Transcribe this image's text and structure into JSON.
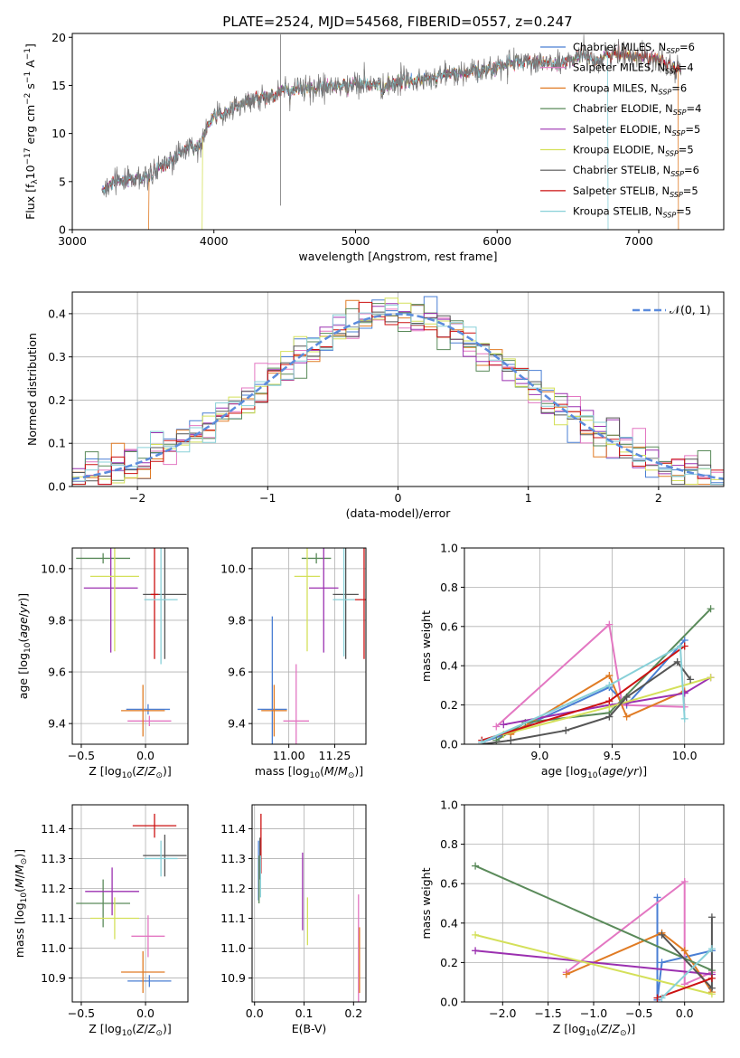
{
  "figure_title": "PLATE=2524, MJD=54568, FIBERID=0557, z=0.247",
  "models": [
    {
      "name": "Chabrier MILES",
      "nssp": "6",
      "color": "#4a7fd4"
    },
    {
      "name": "Salpeter MILES",
      "nssp": "4",
      "color": "#e377c2"
    },
    {
      "name": "Kroupa MILES",
      "nssp": "6",
      "color": "#e07b24"
    },
    {
      "name": "Chabrier ELODIE",
      "nssp": "4",
      "color": "#5a8a5a"
    },
    {
      "name": "Salpeter ELODIE",
      "nssp": "5",
      "color": "#9b30b0"
    },
    {
      "name": "Kroupa ELODIE",
      "nssp": "5",
      "color": "#d4e05a"
    },
    {
      "name": "Chabrier STELIB",
      "nssp": "6",
      "color": "#555555"
    },
    {
      "name": "Salpeter STELIB",
      "nssp": "5",
      "color": "#cc1111"
    },
    {
      "name": "Kroupa STELIB",
      "nssp": "5",
      "color": "#88d0d8"
    }
  ],
  "chart_data": [
    {
      "id": "spectrum",
      "type": "line",
      "xlabel": "wavelength [Angstrom, rest frame]",
      "ylabel": "Flux [f_λ 10^-17 erg cm^-2 s^-1 A^-1]",
      "xlim": [
        3000,
        7600
      ],
      "ylim": [
        0,
        20.4
      ],
      "xticks": [
        3000,
        4000,
        5000,
        6000,
        7000
      ],
      "yticks": [
        0,
        5,
        10,
        15,
        20
      ],
      "grid": false,
      "legend_position": "right",
      "data_x": [
        3210,
        3250,
        3300,
        3400,
        3500,
        3550,
        3600,
        3700,
        3800,
        3900,
        3950,
        4000,
        4100,
        4200,
        4300,
        4400,
        4500,
        4600,
        4700,
        4800,
        4900,
        5000,
        5100,
        5200,
        5300,
        5400,
        5500,
        5600,
        5700,
        5800,
        5900,
        6000,
        6100,
        6200,
        6300,
        6400,
        6500,
        6600,
        6700,
        6800,
        6900,
        7000,
        7100,
        7200,
        7290
      ],
      "data_y": [
        4.3,
        4.6,
        5.0,
        5.3,
        5.2,
        5.8,
        6.3,
        7.2,
        8.3,
        8.6,
        10.5,
        11.8,
        12.4,
        13.2,
        13.6,
        14.0,
        14.3,
        14.7,
        14.6,
        15.0,
        14.9,
        15.2,
        15.1,
        14.8,
        15.3,
        15.6,
        15.5,
        16.0,
        16.2,
        16.2,
        16.5,
        17.0,
        17.3,
        17.6,
        17.4,
        17.2,
        17.5,
        18.0,
        17.6,
        18.2,
        18.3,
        17.9,
        18.0,
        17.4,
        16.5
      ],
      "model_start_x": [
        3210,
        3210,
        3540,
        3210,
        3210,
        3920,
        3210,
        3210,
        3210
      ],
      "model_end_x": [
        7300,
        7300,
        7280,
        7300,
        7300,
        7300,
        7300,
        7300,
        6780
      ]
    },
    {
      "id": "residuals",
      "type": "line",
      "xlabel": "(data-model)/error",
      "ylabel": "Normed distribution",
      "xlim": [
        -2.5,
        2.5
      ],
      "ylim": [
        0,
        0.45
      ],
      "xticks": [
        -2,
        -1,
        0,
        1,
        2
      ],
      "yticks": [
        0.0,
        0.1,
        0.2,
        0.3,
        0.4
      ],
      "grid": true,
      "legend": "𝒩(0, 1)",
      "legend_position": "top-right",
      "bin_width": 0.1
    },
    {
      "id": "age-vs-Z",
      "type": "scatter",
      "xlabel": "Z [log10(Z/Z⊙)]",
      "ylabel": "age [log10(age/yr)]",
      "xlim": [
        -0.57,
        0.33
      ],
      "ylim": [
        9.32,
        10.08
      ],
      "xticks": [
        -0.5,
        0.0
      ],
      "yticks": [
        9.4,
        9.6,
        9.8,
        10.0
      ],
      "grid": true,
      "points": [
        {
          "x": 0.02,
          "y": 9.455,
          "xerr": 0.17,
          "yerr": 0.02
        },
        {
          "x": 0.03,
          "y": 9.41,
          "xerr": 0.17,
          "yerr": 0.02
        },
        {
          "x": -0.02,
          "y": 9.45,
          "xerr": 0.17,
          "yerr": 0.1
        },
        {
          "x": -0.33,
          "y": 10.04,
          "xerr": 0.21,
          "yerr": 0.02
        },
        {
          "x": -0.27,
          "y": 9.925,
          "xerr": 0.21,
          "yerr": 0.25
        },
        {
          "x": -0.24,
          "y": 9.97,
          "xerr": 0.19,
          "yerr": 0.29
        },
        {
          "x": 0.15,
          "y": 9.9,
          "xerr": 0.17,
          "yerr": 0.25
        },
        {
          "x": 0.07,
          "y": 9.9,
          "xerr": 0.03,
          "yerr": 0.25
        },
        {
          "x": 0.12,
          "y": 9.88,
          "xerr": 0.13,
          "yerr": 0.25
        }
      ]
    },
    {
      "id": "age-vs-mass",
      "type": "scatter",
      "xlabel": "mass [log10(M/M⊙)]",
      "ylabel": "",
      "xlim": [
        10.8,
        11.42
      ],
      "ylim": [
        9.32,
        10.08
      ],
      "xticks": [
        11.0,
        11.25
      ],
      "yticks": [
        9.4,
        9.6,
        9.8,
        10.0
      ],
      "grid": true,
      "points": [
        {
          "x": 10.91,
          "y": 9.455,
          "xerr": 0.08,
          "yerr": 0.36
        },
        {
          "x": 11.04,
          "y": 9.41,
          "xerr": 0.07,
          "yerr": 0.22
        },
        {
          "x": 10.92,
          "y": 9.45,
          "xerr": 0.07,
          "yerr": 0.1
        },
        {
          "x": 11.15,
          "y": 10.04,
          "xerr": 0.08,
          "yerr": 0.02
        },
        {
          "x": 11.19,
          "y": 9.925,
          "xerr": 0.08,
          "yerr": 0.25
        },
        {
          "x": 11.1,
          "y": 9.97,
          "xerr": 0.07,
          "yerr": 0.29
        },
        {
          "x": 11.31,
          "y": 9.9,
          "xerr": 0.07,
          "yerr": 0.25
        },
        {
          "x": 11.41,
          "y": 9.88,
          "xerr": 0.05,
          "yerr": 0.23
        },
        {
          "x": 11.3,
          "y": 9.88,
          "xerr": 0.06,
          "yerr": 0.22
        }
      ]
    },
    {
      "id": "massweight-vs-age",
      "type": "line",
      "xlabel": "age [log10(age/yr)]",
      "ylabel": "mass weight",
      "xlim": [
        8.48,
        10.27
      ],
      "ylim": [
        0.0,
        1.0
      ],
      "xticks": [
        9.0,
        9.5,
        10.0
      ],
      "yticks": [
        0.0,
        0.2,
        0.4,
        0.6,
        0.8,
        1.0
      ],
      "grid": true,
      "series": [
        {
          "x": [
            8.6,
            8.8,
            9.48,
            9.6,
            10.0
          ],
          "y": [
            0.01,
            0.06,
            0.29,
            0.2,
            0.53
          ]
        },
        {
          "x": [
            8.7,
            9.48,
            9.57,
            10.0
          ],
          "y": [
            0.09,
            0.61,
            0.2,
            0.19
          ]
        },
        {
          "x": [
            8.8,
            9.48,
            9.6,
            10.0
          ],
          "y": [
            0.05,
            0.35,
            0.14,
            0.27
          ]
        },
        {
          "x": [
            8.7,
            8.9,
            9.48,
            10.18
          ],
          "y": [
            0.02,
            0.11,
            0.16,
            0.69
          ]
        },
        {
          "x": [
            8.75,
            9.48,
            9.6,
            10.0,
            10.18
          ],
          "y": [
            0.1,
            0.2,
            0.21,
            0.26,
            0.34
          ]
        },
        {
          "x": [
            8.75,
            9.48,
            10.18
          ],
          "y": [
            0.05,
            0.19,
            0.34
          ]
        },
        {
          "x": [
            8.6,
            8.8,
            9.18,
            9.48,
            9.6,
            9.95,
            10.04
          ],
          "y": [
            0.0,
            0.02,
            0.07,
            0.14,
            0.24,
            0.42,
            0.33
          ]
        },
        {
          "x": [
            8.6,
            9.48,
            10.0
          ],
          "y": [
            0.02,
            0.22,
            0.5
          ]
        },
        {
          "x": [
            8.6,
            9.48,
            9.97,
            10.0
          ],
          "y": [
            0.01,
            0.3,
            0.5,
            0.13
          ]
        }
      ]
    },
    {
      "id": "mass-vs-Z",
      "type": "scatter",
      "xlabel": "Z [log10(Z/Z⊙)]",
      "ylabel": "mass [log10(M/M⊙)]",
      "xlim": [
        -0.57,
        0.33
      ],
      "ylim": [
        10.82,
        11.48
      ],
      "xticks": [
        -0.5,
        0.0
      ],
      "yticks": [
        10.9,
        11.0,
        11.1,
        11.2,
        11.3,
        11.4
      ],
      "grid": true,
      "points": [
        {
          "x": 0.03,
          "y": 10.89,
          "xerr": 0.17,
          "yerr": 0.02
        },
        {
          "x": 0.02,
          "y": 11.04,
          "xerr": 0.13,
          "yerr": 0.07
        },
        {
          "x": -0.02,
          "y": 10.92,
          "xerr": 0.17,
          "yerr": 0.07
        },
        {
          "x": -0.33,
          "y": 11.15,
          "xerr": 0.21,
          "yerr": 0.08
        },
        {
          "x": -0.26,
          "y": 11.19,
          "xerr": 0.21,
          "yerr": 0.08
        },
        {
          "x": -0.24,
          "y": 11.1,
          "xerr": 0.19,
          "yerr": 0.07
        },
        {
          "x": 0.15,
          "y": 11.31,
          "xerr": 0.17,
          "yerr": 0.07
        },
        {
          "x": 0.07,
          "y": 11.41,
          "xerr": 0.17,
          "yerr": 0.04
        },
        {
          "x": 0.12,
          "y": 11.3,
          "xerr": 0.13,
          "yerr": 0.06
        }
      ]
    },
    {
      "id": "mass-vs-EBV",
      "type": "scatter",
      "xlabel": "E(B-V)",
      "ylabel": "",
      "xlim": [
        -0.005,
        0.225
      ],
      "ylim": [
        10.82,
        11.48
      ],
      "xticks": [
        0.0,
        0.1,
        0.2
      ],
      "yticks": [
        10.9,
        11.0,
        11.1,
        11.2,
        11.3,
        11.4
      ],
      "grid": true,
      "points": [
        {
          "x": 0.008,
          "y": 11.26,
          "xerr": 0.0,
          "yerr": 0.1
        },
        {
          "x": 0.21,
          "y": 10.98,
          "xerr": 0.0,
          "yerr": 0.2
        },
        {
          "x": 0.212,
          "y": 10.96,
          "xerr": 0.0,
          "yerr": 0.11
        },
        {
          "x": 0.009,
          "y": 11.23,
          "xerr": 0.0,
          "yerr": 0.08
        },
        {
          "x": 0.097,
          "y": 11.19,
          "xerr": 0.0,
          "yerr": 0.13
        },
        {
          "x": 0.107,
          "y": 11.09,
          "xerr": 0.0,
          "yerr": 0.08
        },
        {
          "x": 0.011,
          "y": 11.3,
          "xerr": 0.0,
          "yerr": 0.07
        },
        {
          "x": 0.013,
          "y": 11.35,
          "xerr": 0.0,
          "yerr": 0.1
        },
        {
          "x": 0.012,
          "y": 11.24,
          "xerr": 0.0,
          "yerr": 0.07
        }
      ]
    },
    {
      "id": "massweight-vs-Z",
      "type": "line",
      "xlabel": "Z [log10(Z/Z⊙)]",
      "ylabel": "mass weight",
      "xlim": [
        -2.42,
        0.43
      ],
      "ylim": [
        0.0,
        1.0
      ],
      "xticks": [
        -2.0,
        -1.5,
        -1.0,
        -0.5,
        0.0
      ],
      "yticks": [
        0.0,
        0.2,
        0.4,
        0.6,
        0.8,
        1.0
      ],
      "grid": true,
      "series": [
        {
          "x": [
            -0.3,
            -0.3,
            -0.25,
            0.3
          ],
          "y": [
            0.53,
            0.01,
            0.2,
            0.26
          ]
        },
        {
          "x": [
            -1.3,
            0.0,
            0.0,
            0.3
          ],
          "y": [
            0.15,
            0.61,
            0.09,
            0.15
          ]
        },
        {
          "x": [
            -1.3,
            -0.25,
            0.0,
            0.3
          ],
          "y": [
            0.14,
            0.35,
            0.26,
            0.05
          ]
        },
        {
          "x": [
            -2.3,
            0.3
          ],
          "y": [
            0.69,
            0.16
          ]
        },
        {
          "x": [
            -2.3,
            0.3
          ],
          "y": [
            0.26,
            0.14
          ]
        },
        {
          "x": [
            -2.3,
            0.3
          ],
          "y": [
            0.34,
            0.04
          ]
        },
        {
          "x": [
            -0.25,
            0.3,
            0.3
          ],
          "y": [
            0.34,
            0.07,
            0.43
          ]
        },
        {
          "x": [
            -0.3,
            0.3
          ],
          "y": [
            0.02,
            0.12
          ]
        },
        {
          "x": [
            -0.25,
            0.3
          ],
          "y": [
            0.02,
            0.27
          ]
        }
      ]
    }
  ]
}
